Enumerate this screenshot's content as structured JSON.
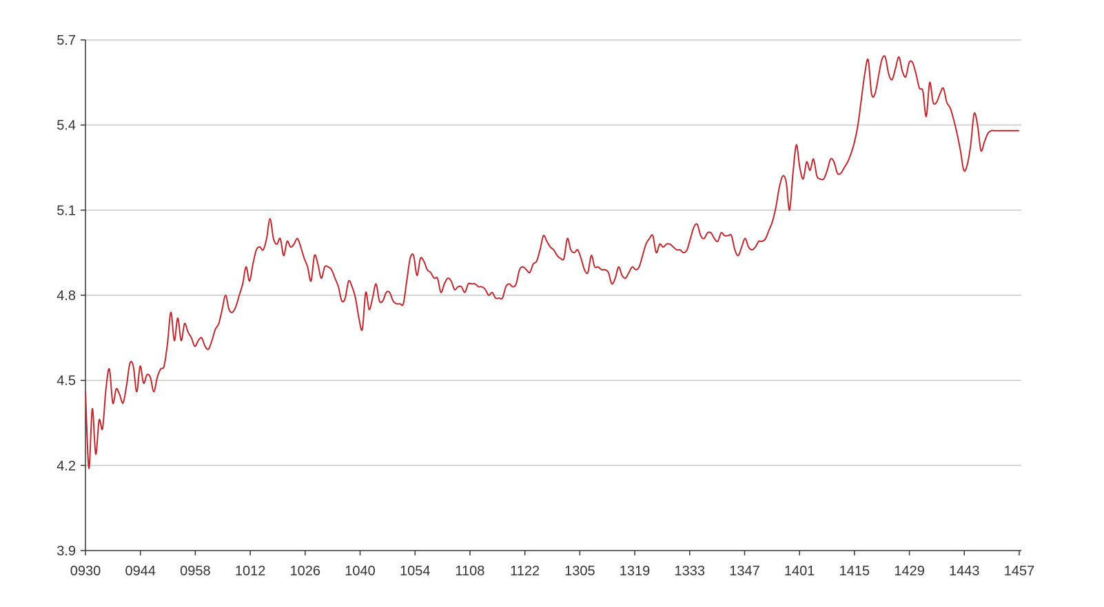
{
  "chart_data": {
    "type": "line",
    "title": "",
    "xlabel": "",
    "ylabel": "",
    "ylim": [
      3.9,
      5.7
    ],
    "yticks": [
      "3.9",
      "4.2",
      "4.5",
      "4.8",
      "5.1",
      "5.4",
      "5.7"
    ],
    "xticks": [
      "0930",
      "0944",
      "0958",
      "1012",
      "1026",
      "1040",
      "1054",
      "1108",
      "1122",
      "1305",
      "1319",
      "1333",
      "1347",
      "1401",
      "1415",
      "1429",
      "1443",
      "1457"
    ],
    "grid": true,
    "line_color": "#c0282e",
    "series": [
      {
        "values": [
          4.46,
          4.19,
          4.4,
          4.24,
          4.36,
          4.33,
          4.47,
          4.54,
          4.42,
          4.47,
          4.45,
          4.42,
          4.48,
          4.56,
          4.55,
          4.46,
          4.55,
          4.49,
          4.52,
          4.51,
          4.46,
          4.51,
          4.54,
          4.55,
          4.63,
          4.74,
          4.64,
          4.72,
          4.64,
          4.7,
          4.67,
          4.65,
          4.62,
          4.64,
          4.65,
          4.62,
          4.61,
          4.64,
          4.68,
          4.7,
          4.75,
          4.8,
          4.75,
          4.74,
          4.76,
          4.8,
          4.84,
          4.9,
          4.85,
          4.91,
          4.96,
          4.97,
          4.96,
          5.0,
          5.07,
          5.0,
          4.98,
          5.0,
          4.94,
          4.99,
          4.97,
          4.98,
          5.0,
          4.97,
          4.93,
          4.9,
          4.85,
          4.94,
          4.91,
          4.86,
          4.9,
          4.9,
          4.89,
          4.86,
          4.83,
          4.78,
          4.79,
          4.85,
          4.83,
          4.79,
          4.72,
          4.68,
          4.81,
          4.75,
          4.79,
          4.84,
          4.78,
          4.78,
          4.81,
          4.81,
          4.78,
          4.77,
          4.77,
          4.77,
          4.85,
          4.93,
          4.94,
          4.87,
          4.93,
          4.92,
          4.89,
          4.88,
          4.86,
          4.86,
          4.81,
          4.84,
          4.86,
          4.85,
          4.82,
          4.83,
          4.83,
          4.81,
          4.84,
          4.84,
          4.84,
          4.83,
          4.83,
          4.82,
          4.8,
          4.81,
          4.79,
          4.79,
          4.79,
          4.83,
          4.84,
          4.83,
          4.84,
          4.89,
          4.9,
          4.89,
          4.88,
          4.91,
          4.92,
          4.96,
          5.01,
          4.99,
          4.97,
          4.96,
          4.94,
          4.93,
          4.93,
          5.0,
          4.96,
          4.95,
          4.96,
          4.93,
          4.89,
          4.88,
          4.94,
          4.9,
          4.9,
          4.89,
          4.89,
          4.88,
          4.84,
          4.86,
          4.9,
          4.87,
          4.86,
          4.88,
          4.9,
          4.89,
          4.9,
          4.94,
          4.98,
          5.0,
          5.01,
          4.95,
          4.98,
          4.97,
          4.98,
          4.98,
          4.97,
          4.96,
          4.96,
          4.95,
          4.96,
          5.0,
          5.04,
          5.05,
          5.01,
          5.0,
          5.02,
          5.02,
          5.0,
          4.99,
          5.02,
          5.01,
          5.01,
          5.01,
          4.96,
          4.94,
          4.97,
          5.0,
          4.97,
          4.96,
          4.97,
          4.99,
          4.99,
          5.0,
          5.03,
          5.06,
          5.11,
          5.18,
          5.22,
          5.2,
          5.1,
          5.23,
          5.33,
          5.25,
          5.21,
          5.27,
          5.24,
          5.28,
          5.22,
          5.21,
          5.21,
          5.24,
          5.28,
          5.27,
          5.23,
          5.23,
          5.25,
          5.27,
          5.3,
          5.34,
          5.4,
          5.49,
          5.58,
          5.63,
          5.51,
          5.51,
          5.57,
          5.63,
          5.64,
          5.58,
          5.56,
          5.6,
          5.64,
          5.59,
          5.57,
          5.62,
          5.62,
          5.58,
          5.53,
          5.52,
          5.43,
          5.55,
          5.48,
          5.48,
          5.51,
          5.53,
          5.48,
          5.46,
          5.42,
          5.37,
          5.31,
          5.24,
          5.26,
          5.33,
          5.44,
          5.4,
          5.31,
          5.34,
          5.37,
          5.38,
          5.38,
          5.38,
          5.38,
          5.38,
          5.38,
          5.38,
          5.38,
          5.38
        ]
      }
    ]
  }
}
